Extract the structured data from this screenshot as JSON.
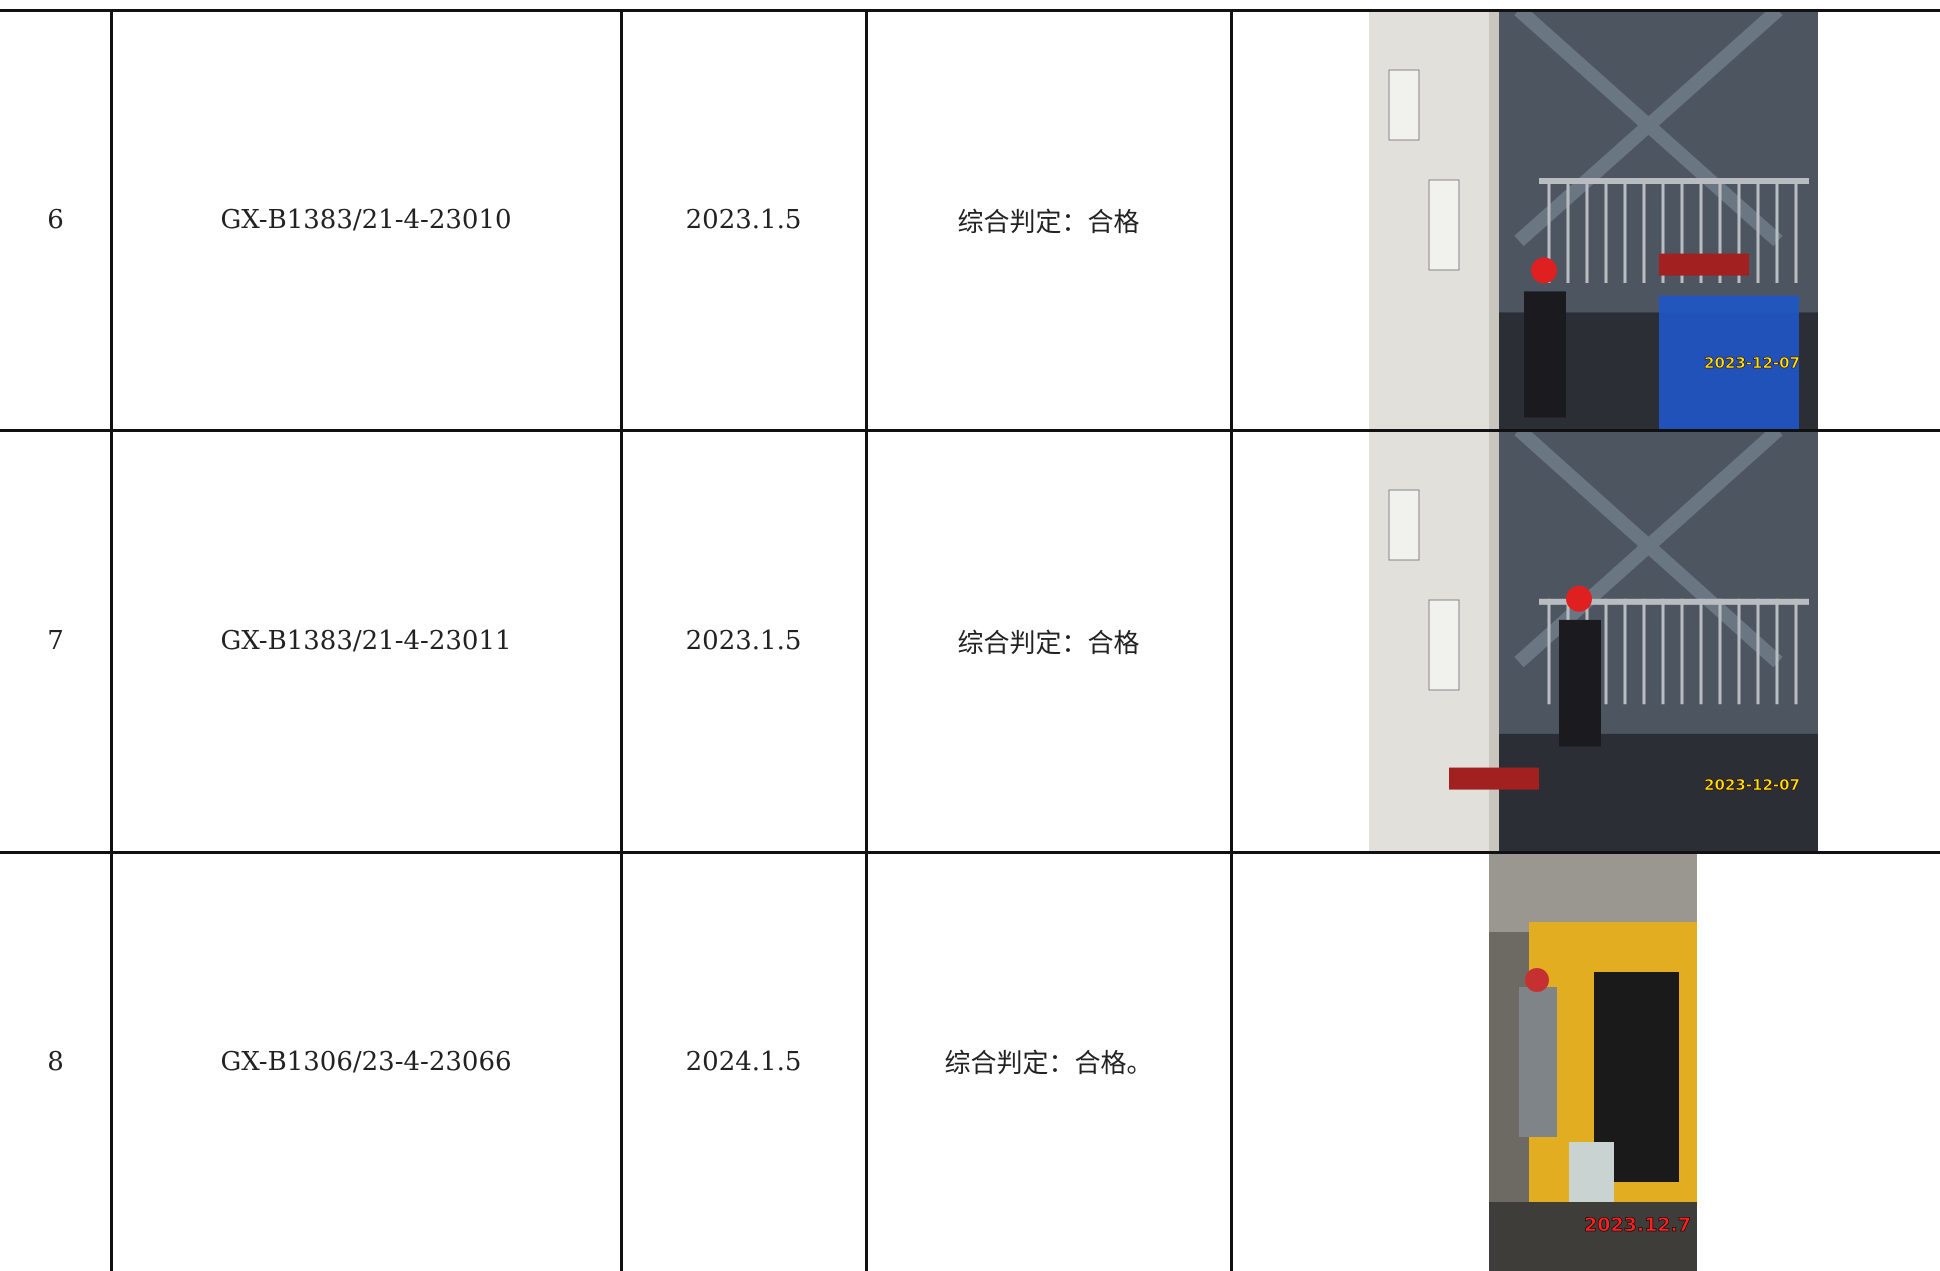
{
  "table": {
    "rows": [
      {
        "no": "6",
        "code": "GX-B1383/21-4-23010",
        "date": "2023.1.5",
        "result": "综合判定：合格",
        "photo_stamp": "2023-12-07"
      },
      {
        "no": "7",
        "code": "GX-B1383/21-4-23011",
        "date": "2023.1.5",
        "result": "综合判定：合格",
        "photo_stamp": "2023-12-07"
      },
      {
        "no": "8",
        "code": "GX-B1306/23-4-23066",
        "date": "2024.1.5",
        "result": "综合判定：合格。",
        "photo_stamp": "2023.12.7"
      }
    ]
  }
}
